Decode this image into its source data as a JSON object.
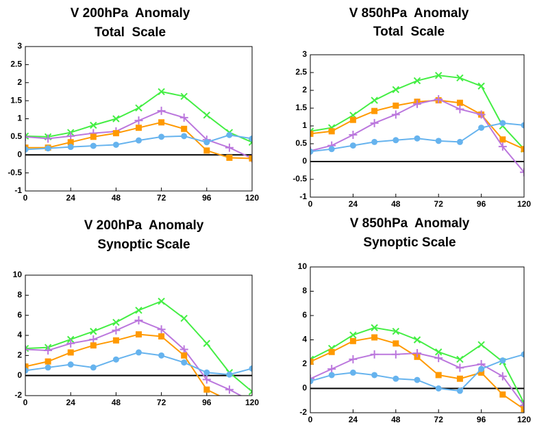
{
  "chart_data": [
    {
      "type": "line",
      "title": "V 200hPa  Anomaly",
      "subtitle": "Total  Scale",
      "x": [
        0,
        12,
        24,
        36,
        48,
        60,
        72,
        84,
        96,
        108,
        120
      ],
      "xlim": [
        0,
        120
      ],
      "xticks": [
        0,
        24,
        48,
        72,
        96,
        120
      ],
      "ylim": [
        -1,
        3
      ],
      "yticks": [
        -1,
        -0.5,
        0,
        0.5,
        1,
        1.5,
        2,
        2.5,
        3
      ],
      "series": [
        {
          "color": "#44ee44",
          "marker": "x",
          "values": [
            0.52,
            0.5,
            0.62,
            0.82,
            1.0,
            1.3,
            1.75,
            1.62,
            1.1,
            0.62,
            0.35
          ]
        },
        {
          "color": "#bb77dd",
          "marker": "plus",
          "values": [
            0.5,
            0.45,
            0.52,
            0.6,
            0.65,
            0.95,
            1.22,
            1.03,
            0.42,
            0.2,
            -0.1
          ]
        },
        {
          "color": "#ff9900",
          "marker": "square",
          "values": [
            0.2,
            0.2,
            0.35,
            0.5,
            0.6,
            0.75,
            0.9,
            0.72,
            0.12,
            -0.08,
            -0.1
          ]
        },
        {
          "color": "#66b3ee",
          "marker": "circle",
          "values": [
            0.15,
            0.18,
            0.22,
            0.25,
            0.28,
            0.4,
            0.5,
            0.52,
            0.35,
            0.55,
            0.45
          ]
        }
      ]
    },
    {
      "type": "line",
      "title": "V 850hPa  Anomaly",
      "subtitle": "Total  Scale",
      "x": [
        0,
        12,
        24,
        36,
        48,
        60,
        72,
        84,
        96,
        108,
        120
      ],
      "xlim": [
        0,
        120
      ],
      "xticks": [
        0,
        24,
        48,
        72,
        96,
        120
      ],
      "ylim": [
        -1,
        3
      ],
      "yticks": [
        -1,
        -0.5,
        0,
        0.5,
        1,
        1.5,
        2,
        2.5,
        3
      ],
      "series": [
        {
          "color": "#44ee44",
          "marker": "x",
          "values": [
            0.85,
            0.95,
            1.3,
            1.72,
            2.02,
            2.27,
            2.42,
            2.35,
            2.12,
            1.0,
            0.35
          ]
        },
        {
          "color": "#ff9900",
          "marker": "square",
          "values": [
            0.78,
            0.85,
            1.17,
            1.42,
            1.57,
            1.68,
            1.72,
            1.65,
            1.32,
            0.62,
            0.35
          ]
        },
        {
          "color": "#bb77dd",
          "marker": "plus",
          "values": [
            0.3,
            0.45,
            0.75,
            1.08,
            1.32,
            1.62,
            1.75,
            1.47,
            1.32,
            0.42,
            -0.3
          ]
        },
        {
          "color": "#66b3ee",
          "marker": "circle",
          "values": [
            0.28,
            0.35,
            0.45,
            0.55,
            0.6,
            0.65,
            0.58,
            0.55,
            0.95,
            1.08,
            1.02
          ]
        }
      ]
    },
    {
      "type": "line",
      "title": "V 200hPa  Anomaly",
      "subtitle": "Synoptic Scale",
      "x": [
        0,
        12,
        24,
        36,
        48,
        60,
        72,
        84,
        96,
        108,
        120
      ],
      "xlim": [
        0,
        120
      ],
      "xticks": [
        0,
        24,
        48,
        72,
        96,
        120
      ],
      "ylim": [
        -2,
        10
      ],
      "yticks": [
        -2,
        0,
        2,
        4,
        6,
        8,
        10
      ],
      "series": [
        {
          "color": "#44ee44",
          "marker": "x",
          "values": [
            2.7,
            2.8,
            3.6,
            4.4,
            5.3,
            6.5,
            7.4,
            5.7,
            3.2,
            0.3,
            -1.6
          ]
        },
        {
          "color": "#bb77dd",
          "marker": "plus",
          "values": [
            2.6,
            2.5,
            3.2,
            3.6,
            4.5,
            5.5,
            4.6,
            2.6,
            -0.4,
            -1.4,
            -2.6
          ]
        },
        {
          "color": "#ff9900",
          "marker": "square",
          "values": [
            0.9,
            1.4,
            2.3,
            3.0,
            3.5,
            4.1,
            3.9,
            2.0,
            -1.4,
            -2.5,
            -2.5
          ]
        },
        {
          "color": "#66b3ee",
          "marker": "circle",
          "values": [
            0.5,
            0.8,
            1.1,
            0.8,
            1.6,
            2.3,
            2.0,
            1.3,
            0.3,
            0.1,
            0.7
          ]
        }
      ]
    },
    {
      "type": "line",
      "title": "V 850hPa  Anomaly",
      "subtitle": "Synoptic Scale",
      "x": [
        0,
        12,
        24,
        36,
        48,
        60,
        72,
        84,
        96,
        108,
        120
      ],
      "xlim": [
        0,
        120
      ],
      "xticks": [
        0,
        24,
        48,
        72,
        96,
        120
      ],
      "ylim": [
        -2,
        10
      ],
      "yticks": [
        -2,
        0,
        2,
        4,
        6,
        8,
        10
      ],
      "series": [
        {
          "color": "#44ee44",
          "marker": "x",
          "values": [
            2.4,
            3.3,
            4.4,
            5.0,
            4.7,
            4.0,
            3.0,
            2.4,
            3.6,
            2.2,
            -1.2
          ]
        },
        {
          "color": "#ff9900",
          "marker": "square",
          "values": [
            2.2,
            3.0,
            3.9,
            4.2,
            3.7,
            2.6,
            1.1,
            0.8,
            1.3,
            -0.5,
            -1.7
          ]
        },
        {
          "color": "#bb77dd",
          "marker": "plus",
          "values": [
            0.8,
            1.6,
            2.4,
            2.8,
            2.8,
            2.9,
            2.5,
            1.7,
            2.0,
            1.0,
            -1.4
          ]
        },
        {
          "color": "#66b3ee",
          "marker": "circle",
          "values": [
            0.6,
            1.1,
            1.3,
            1.1,
            0.8,
            0.7,
            0.0,
            -0.2,
            1.6,
            2.3,
            2.8
          ]
        }
      ]
    }
  ]
}
